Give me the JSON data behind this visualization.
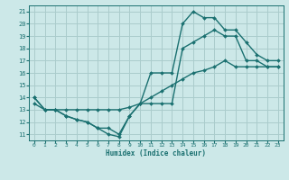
{
  "xlabel": "Humidex (Indice chaleur)",
  "bg_color": "#cce8e8",
  "grid_color": "#aacccc",
  "line_color": "#1a7070",
  "xlim": [
    -0.5,
    23.5
  ],
  "ylim": [
    10.5,
    21.5
  ],
  "xticks": [
    0,
    1,
    2,
    3,
    4,
    5,
    6,
    7,
    8,
    9,
    10,
    11,
    12,
    13,
    14,
    15,
    16,
    17,
    18,
    19,
    20,
    21,
    22,
    23
  ],
  "yticks": [
    11,
    12,
    13,
    14,
    15,
    16,
    17,
    18,
    19,
    20,
    21
  ],
  "line1_x": [
    0,
    1,
    2,
    3,
    4,
    5,
    6,
    7,
    8,
    9,
    10,
    11,
    12,
    13,
    14,
    15,
    16,
    17,
    18,
    19,
    20,
    21,
    22,
    23
  ],
  "line1_y": [
    14,
    13,
    13,
    12.5,
    12.2,
    12,
    11.5,
    11,
    10.8,
    12.5,
    13.5,
    16,
    16,
    16,
    20,
    21.0,
    20.5,
    20.5,
    19.5,
    19.5,
    18.5,
    17.5,
    17.0,
    17.0
  ],
  "line2_x": [
    0,
    1,
    2,
    3,
    4,
    5,
    6,
    7,
    8,
    9,
    10,
    11,
    12,
    13,
    14,
    15,
    16,
    17,
    18,
    19,
    20,
    21,
    22,
    23
  ],
  "line2_y": [
    14,
    13,
    13,
    12.5,
    12.2,
    12,
    11.5,
    11.5,
    11.0,
    12.5,
    13.5,
    13.5,
    13.5,
    13.5,
    18.0,
    18.5,
    19.0,
    19.5,
    19.0,
    19.0,
    17.0,
    17.0,
    16.5,
    16.5
  ],
  "line3_x": [
    0,
    1,
    2,
    3,
    4,
    5,
    6,
    7,
    8,
    9,
    10,
    11,
    12,
    13,
    14,
    15,
    16,
    17,
    18,
    19,
    20,
    21,
    22,
    23
  ],
  "line3_y": [
    13.5,
    13.0,
    13.0,
    13.0,
    13.0,
    13.0,
    13.0,
    13.0,
    13.0,
    13.2,
    13.5,
    14.0,
    14.5,
    15.0,
    15.5,
    16.0,
    16.2,
    16.5,
    17.0,
    16.5,
    16.5,
    16.5,
    16.5,
    16.5
  ]
}
